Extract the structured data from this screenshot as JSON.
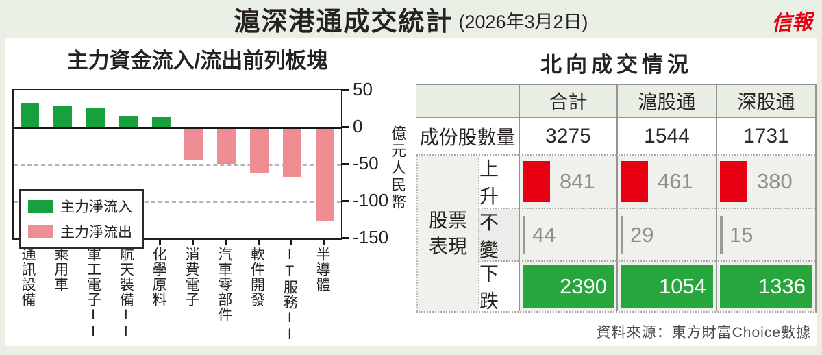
{
  "page": {
    "title_main": "滬深港通成交統計",
    "title_date": "(2026年3月2日)",
    "logo": "信報",
    "source": "資料來源：東方財富Choice數據",
    "colors": {
      "frame_bg": "#e9efe5",
      "card_bg": "#ffffff",
      "accent_red": "#e60012"
    }
  },
  "chart_data": [
    {
      "type": "bar",
      "title": "主力資金流入/流出前列板塊",
      "categories": [
        "通訊設備",
        "乘用車",
        "軍工電子II",
        "航天裝備II",
        "化學原料",
        "消費電子",
        "汽車零部件",
        "軟件開發",
        "IT服務II",
        "半導體"
      ],
      "values": [
        32,
        29,
        25,
        15,
        13,
        -43,
        -48,
        -59,
        -66,
        -124
      ],
      "bar_colors": {
        "positive": "#17a03d",
        "negative": "#ef8d95"
      },
      "legend": [
        {
          "label": "主力淨流入",
          "color": "#17a03d"
        },
        {
          "label": "主力淨流出",
          "color": "#ef8d95"
        }
      ],
      "legend_position": "lower-left",
      "ylabel": "億元人民幣",
      "yticks": [
        50,
        0,
        -50,
        -100,
        -150
      ],
      "ylim": [
        -150,
        50
      ],
      "grid": "dashed horizontal at -50 and -100, solid zero line"
    },
    {
      "type": "table",
      "title": "北向成交情況",
      "col_headers": [
        "合計",
        "滬股通",
        "深股通"
      ],
      "row_constituents": {
        "label": "成份股數量",
        "values": [
          "3275",
          "1544",
          "1731"
        ]
      },
      "group_label": "股票表現",
      "row_up": {
        "label": "上升",
        "values": [
          "841",
          "461",
          "380"
        ],
        "bar_color": "#e60012"
      },
      "row_flat": {
        "label": "不變",
        "values": [
          "44",
          "29",
          "15"
        ],
        "bar_color": "#9a9a9a"
      },
      "row_down": {
        "label": "下跌",
        "values": [
          "2390",
          "1054",
          "1336"
        ],
        "bar_color": "#27a63e"
      }
    }
  ]
}
